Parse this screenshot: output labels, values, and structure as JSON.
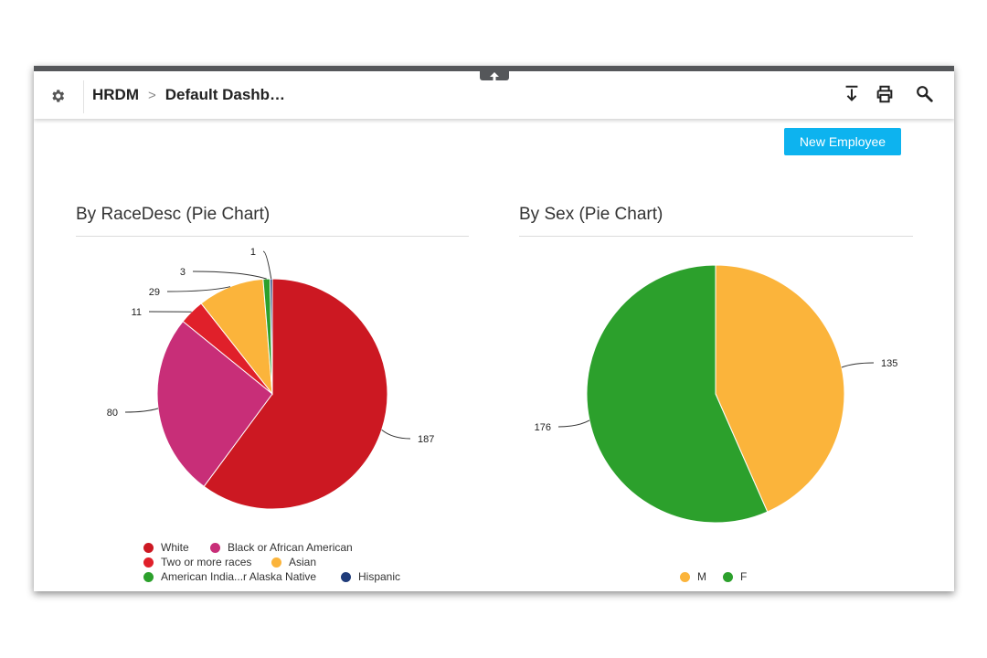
{
  "header": {
    "app": "HRDM",
    "separator": ">",
    "dashboard": "Default Dashb…"
  },
  "toolbar": {
    "icons": [
      "export-icon",
      "print-icon",
      "search-icon"
    ],
    "collapse_icon": "arrow-up-icon"
  },
  "actions": {
    "new_employee_label": "New Employee"
  },
  "colors": {
    "accent": "#0db3ef",
    "topbar_border": "#55575a"
  },
  "chart_data": [
    {
      "type": "pie",
      "title": "By RaceDesc (Pie Chart)",
      "slices": [
        {
          "label": "White",
          "value": 187,
          "color": "#cc1822"
        },
        {
          "label": "Black or African American",
          "value": 80,
          "color": "#c82e78"
        },
        {
          "label": "Two or more races",
          "value": 11,
          "color": "#e0202a"
        },
        {
          "label": "Asian",
          "value": 29,
          "color": "#fbb43b"
        },
        {
          "label": "American India...r Alaska Native",
          "value": 3,
          "color": "#2ca02c"
        },
        {
          "label": "Hispanic",
          "value": 1,
          "color": "#1f3b7a"
        }
      ],
      "legend_rows": [
        [
          0,
          1
        ],
        [
          2,
          3
        ],
        [
          4,
          5
        ]
      ],
      "legend_position": "bottom"
    },
    {
      "type": "pie",
      "title": "By Sex (Pie Chart)",
      "slices": [
        {
          "label": "M",
          "value": 135,
          "color": "#fbb43b"
        },
        {
          "label": "F",
          "value": 176,
          "color": "#2ca02c"
        }
      ],
      "legend_rows": [
        [
          0,
          1
        ]
      ],
      "legend_position": "bottom"
    }
  ]
}
